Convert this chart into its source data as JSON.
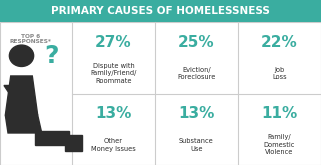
{
  "title": "PRIMARY CAUSES OF HOMELESSNESS",
  "title_bg": "#3aada0",
  "title_color": "#ffffff",
  "top_label": "TOP 6\nRESPONSES*",
  "bg_color": "#ffffff",
  "teal_color": "#3aada0",
  "dark_color": "#2d2d2d",
  "grid_line_color": "#cccccc",
  "entries": [
    {
      "pct": "27%",
      "label": "Dispute with\nFamily/Friend/\nRoommate"
    },
    {
      "pct": "25%",
      "label": "Eviction/\nForeclosure"
    },
    {
      "pct": "22%",
      "label": "Job\nLoss"
    },
    {
      "pct": "13%",
      "label": "Other\nMoney Issues"
    },
    {
      "pct": "13%",
      "label": "Substance\nUse"
    },
    {
      "pct": "11%",
      "label": "Family/\nDomestic\nViolence"
    }
  ],
  "fig_w": 3.21,
  "fig_h": 1.65,
  "dpi": 100
}
